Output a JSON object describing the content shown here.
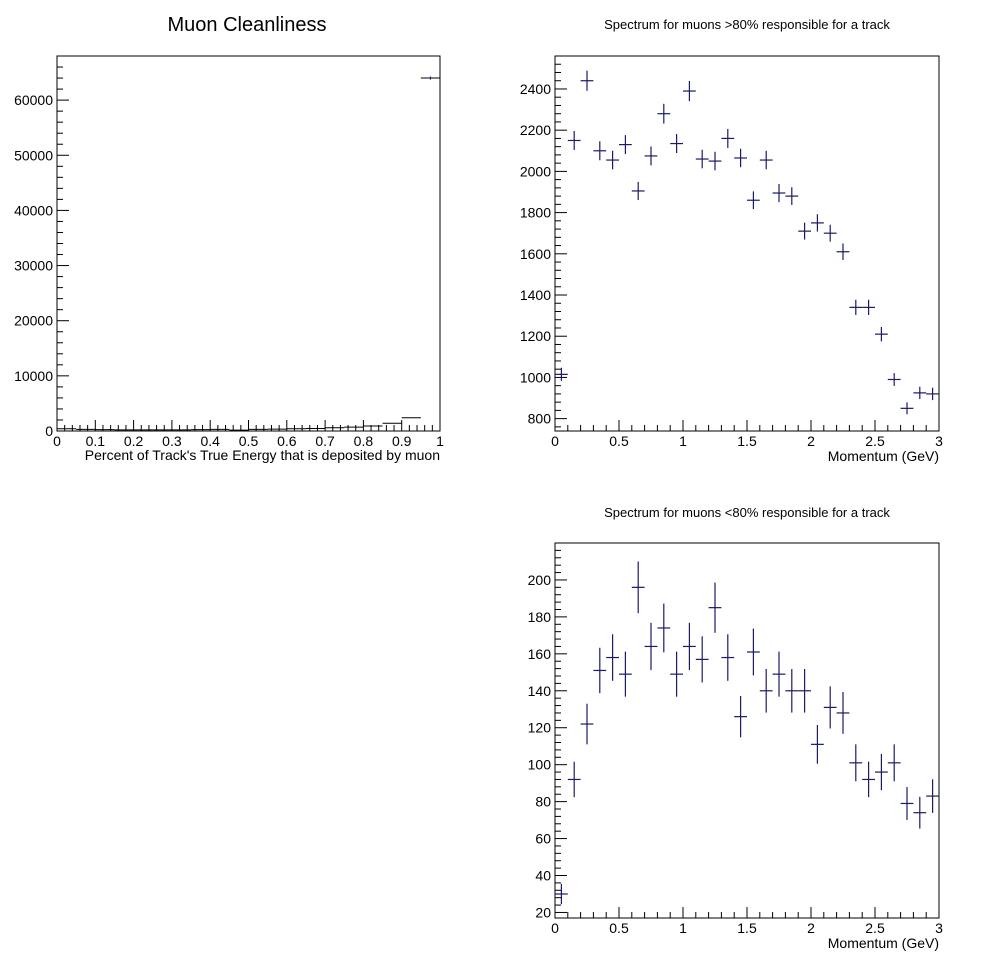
{
  "chart_data": [
    {
      "type": "histogram",
      "title": "Muon Cleanliness",
      "xlabel": "Percent of Track's True Energy that is deposited by muon",
      "ylabel": "",
      "xlim": [
        0,
        1
      ],
      "ylim": [
        0,
        68000
      ],
      "x_ticks": [
        "0",
        "0.1",
        "0.2",
        "0.3",
        "0.4",
        "0.5",
        "0.6",
        "0.7",
        "0.8",
        "0.9",
        "1"
      ],
      "y_ticks": [
        "0",
        "10000",
        "20000",
        "30000",
        "40000",
        "50000",
        "60000"
      ],
      "bin_width": 0.05,
      "x": [
        0.025,
        0.075,
        0.125,
        0.175,
        0.225,
        0.275,
        0.325,
        0.375,
        0.425,
        0.475,
        0.525,
        0.575,
        0.625,
        0.675,
        0.725,
        0.775,
        0.825,
        0.875,
        0.925,
        0.975
      ],
      "values": [
        400,
        300,
        250,
        200,
        200,
        200,
        200,
        250,
        300,
        150,
        300,
        350,
        400,
        450,
        600,
        700,
        900,
        1400,
        2400,
        64000
      ],
      "errors": [
        60,
        60,
        60,
        60,
        60,
        60,
        60,
        60,
        60,
        60,
        60,
        60,
        60,
        60,
        60,
        60,
        60,
        60,
        60,
        300
      ],
      "series_color": "#1a1a66"
    },
    {
      "type": "scatter",
      "title": "Spectrum for muons >80% responsible for a track",
      "xlabel": "Momentum (GeV)",
      "ylabel": "",
      "xlim": [
        0,
        3
      ],
      "ylim": [
        740,
        2560
      ],
      "x_ticks": [
        "0",
        "0.5",
        "1",
        "1.5",
        "2",
        "2.5",
        "3"
      ],
      "y_ticks": [
        "800",
        "1000",
        "1200",
        "1400",
        "1600",
        "1800",
        "2000",
        "2200",
        "2400"
      ],
      "bin_width": 0.1,
      "x": [
        0.05,
        0.15,
        0.25,
        0.35,
        0.45,
        0.55,
        0.65,
        0.75,
        0.85,
        0.95,
        1.05,
        1.15,
        1.25,
        1.35,
        1.45,
        1.55,
        1.65,
        1.75,
        1.85,
        1.95,
        2.05,
        2.15,
        2.25,
        2.35,
        2.45,
        2.55,
        2.65,
        2.75,
        2.85,
        2.95
      ],
      "values": [
        1015,
        2150,
        2440,
        2100,
        2055,
        2130,
        1905,
        2075,
        2280,
        2135,
        2390,
        2060,
        2050,
        2160,
        2065,
        1860,
        2055,
        1895,
        1880,
        1710,
        1750,
        1700,
        1610,
        1340,
        1340,
        1210,
        990,
        850,
        925,
        920
      ],
      "errors": [
        32,
        46,
        49,
        46,
        45,
        46,
        44,
        46,
        48,
        46,
        49,
        45,
        45,
        46,
        45,
        43,
        45,
        44,
        43,
        41,
        42,
        41,
        40,
        37,
        37,
        35,
        31,
        29,
        30,
        30
      ],
      "series_color": "#1a1a66"
    },
    {
      "type": "scatter",
      "title": "Spectrum for muons <80% responsible for a track",
      "xlabel": "Momentum (GeV)",
      "ylabel": "",
      "xlim": [
        0,
        3
      ],
      "ylim": [
        17,
        220
      ],
      "x_ticks": [
        "0",
        "0.5",
        "1",
        "1.5",
        "2",
        "2.5",
        "3"
      ],
      "y_ticks": [
        "20",
        "40",
        "60",
        "80",
        "100",
        "120",
        "140",
        "160",
        "180",
        "200"
      ],
      "bin_width": 0.1,
      "x": [
        0.05,
        0.15,
        0.25,
        0.35,
        0.45,
        0.55,
        0.65,
        0.75,
        0.85,
        0.95,
        1.05,
        1.15,
        1.25,
        1.35,
        1.45,
        1.55,
        1.65,
        1.75,
        1.85,
        1.95,
        2.05,
        2.15,
        2.25,
        2.35,
        2.45,
        2.55,
        2.65,
        2.75,
        2.85,
        2.95
      ],
      "values": [
        30,
        92,
        122,
        151,
        158,
        149,
        196,
        164,
        174,
        149,
        164,
        157,
        185,
        158,
        126,
        161,
        140,
        149,
        140,
        140,
        111,
        131,
        128,
        101,
        92,
        96,
        101,
        79,
        74,
        83
      ],
      "errors": [
        5.5,
        9.6,
        11,
        12.3,
        12.6,
        12.2,
        14,
        12.8,
        13.2,
        12.2,
        12.8,
        12.5,
        13.6,
        12.6,
        11.2,
        12.7,
        11.8,
        12.2,
        11.8,
        11.8,
        10.5,
        11.4,
        11.3,
        10,
        9.6,
        9.8,
        10,
        8.9,
        8.6,
        9.1
      ],
      "series_color": "#1a1a66"
    }
  ]
}
